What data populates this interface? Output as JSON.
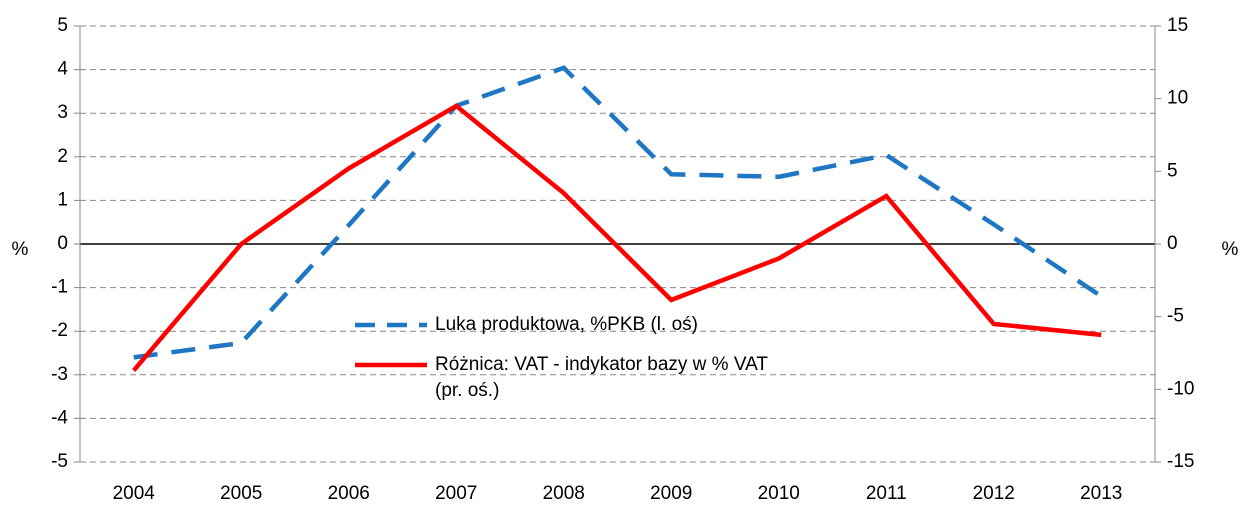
{
  "chart_data": {
    "type": "line",
    "categories": [
      "2004",
      "2005",
      "2006",
      "2007",
      "2008",
      "2009",
      "2010",
      "2011",
      "2012",
      "2013"
    ],
    "ylabel": "%",
    "y2label": "%",
    "ylim": [
      -5,
      5
    ],
    "yticks": [
      -5,
      -4,
      -3,
      -2,
      -1,
      0,
      1,
      2,
      3,
      4,
      5
    ],
    "y2lim": [
      -15,
      15
    ],
    "y2ticks": [
      -15,
      -10,
      -5,
      0,
      5,
      10,
      15
    ],
    "grid": true,
    "series": [
      {
        "name": "Luka produktowa, %PKB (l. oś)",
        "color": "#1f77c4",
        "dashed": true,
        "axis": "y",
        "values": [
          -2.6,
          -2.27,
          0.43,
          3.17,
          4.04,
          1.6,
          1.54,
          2.04,
          0.45,
          -1.2
        ]
      },
      {
        "name": "Różnica: VAT - indykator bazy w % VAT (pr. oś.)",
        "color": "#ff0000",
        "dashed": false,
        "axis": "y2",
        "values": [
          -8.7,
          0,
          5.2,
          9.5,
          3.5,
          -3.85,
          -1.0,
          3.3,
          -5.5,
          -6.25
        ]
      }
    ]
  }
}
